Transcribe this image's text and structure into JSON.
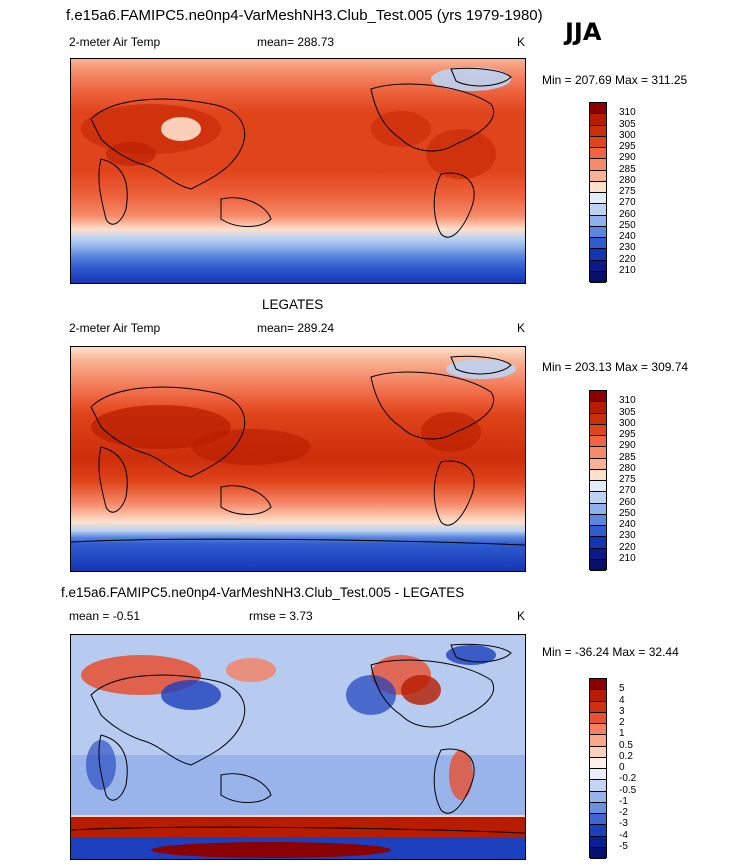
{
  "season": "JJA",
  "panels": [
    {
      "title": "f.e15a6.FAMIPC5.ne0np4-VarMeshNH3.Club_Test.005 (yrs 1979-1980)",
      "left_label": "2-meter Air Temp",
      "center_label": "mean= 288.73",
      "unit": "K",
      "minmax": "Min = 207.69 Max = 311.25",
      "colorbar": {
        "levels": [
          "310",
          "305",
          "300",
          "295",
          "290",
          "285",
          "280",
          "275",
          "270",
          "260",
          "250",
          "240",
          "230",
          "220",
          "210"
        ],
        "colors": [
          "#8b0000",
          "#b71c00",
          "#cc2e0a",
          "#e0441a",
          "#ee6540",
          "#f58b6a",
          "#f9b394",
          "#fde0cc",
          "#e3edf9",
          "#bcd3f2",
          "#8fb2ea",
          "#5a86de",
          "#2f5ccf",
          "#1535b5",
          "#0a1a8a",
          "#06106a"
        ]
      }
    },
    {
      "title": "LEGATES",
      "left_label": "2-meter Air Temp",
      "center_label": "mean= 289.24",
      "unit": "K",
      "minmax": "Min = 203.13 Max = 309.74",
      "colorbar": {
        "levels": [
          "310",
          "305",
          "300",
          "295",
          "290",
          "285",
          "280",
          "275",
          "270",
          "260",
          "250",
          "240",
          "230",
          "220",
          "210"
        ],
        "colors": [
          "#8b0000",
          "#b71c00",
          "#cc2e0a",
          "#e0441a",
          "#ee6540",
          "#f58b6a",
          "#f9b394",
          "#fde0cc",
          "#e3edf9",
          "#bcd3f2",
          "#8fb2ea",
          "#5a86de",
          "#2f5ccf",
          "#1535b5",
          "#0a1a8a",
          "#06106a"
        ]
      }
    },
    {
      "title": "f.e15a6.FAMIPC5.ne0np4-VarMeshNH3.Club_Test.005 - LEGATES",
      "left_label": "mean =  -0.51",
      "center_label": "rmse =   3.73",
      "unit": "K",
      "minmax": "Min = -36.24 Max =  32.44",
      "colorbar": {
        "levels": [
          "5",
          "4",
          "3",
          "2",
          "1",
          "0.5",
          "0.2",
          "0",
          "-0.2",
          "-0.5",
          "-1",
          "-2",
          "-3",
          "-4",
          "-5"
        ],
        "colors": [
          "#8b0000",
          "#b71c00",
          "#d03010",
          "#e85030",
          "#f48060",
          "#f8a888",
          "#fcd0bc",
          "#fff0e8",
          "#e8eefa",
          "#c4d4f3",
          "#98b4ea",
          "#6a90df",
          "#3e66d2",
          "#1c40bd",
          "#0a1f96",
          "#051070"
        ]
      }
    }
  ]
}
